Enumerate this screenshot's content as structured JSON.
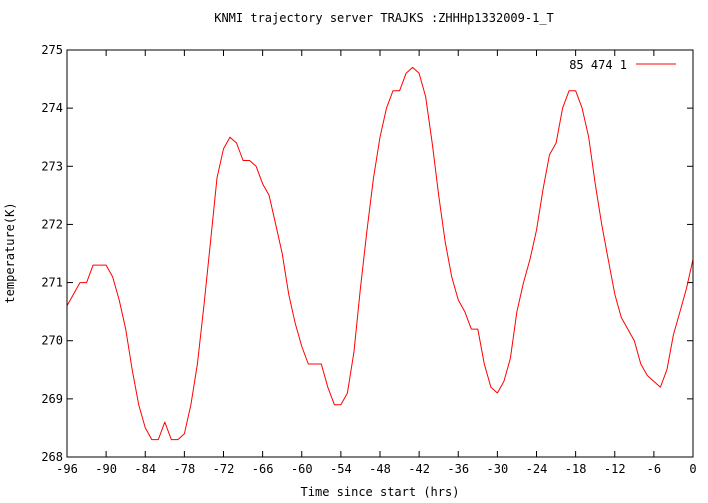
{
  "chart_data": {
    "type": "line",
    "title": "KNMI trajectory server TRAJKS :ZHHHp1332009-1_T",
    "xlabel": "Time since start (hrs)",
    "ylabel": "temperature(K)",
    "xlim": [
      -96,
      0
    ],
    "ylim": [
      268,
      275
    ],
    "xticks": [
      -96,
      -90,
      -84,
      -78,
      -72,
      -66,
      -60,
      -54,
      -48,
      -42,
      -36,
      -30,
      -24,
      -18,
      -12,
      -6,
      0
    ],
    "yticks": [
      268,
      269,
      270,
      271,
      272,
      273,
      274,
      275
    ],
    "grid": false,
    "legend_position": "top-right",
    "series": [
      {
        "name": "85 474 1",
        "color": "#ff0000",
        "x": [
          -96,
          -95,
          -94,
          -93,
          -92,
          -91,
          -90,
          -89,
          -88,
          -87,
          -86,
          -85,
          -84,
          -83,
          -82,
          -81,
          -80,
          -79,
          -78,
          -77,
          -76,
          -75,
          -74,
          -73,
          -72,
          -71,
          -70,
          -69,
          -68,
          -67,
          -66,
          -65,
          -64,
          -63,
          -62,
          -61,
          -60,
          -59,
          -58,
          -57,
          -56,
          -55,
          -54,
          -53,
          -52,
          -51,
          -50,
          -49,
          -48,
          -47,
          -46,
          -45,
          -44,
          -43,
          -42,
          -41,
          -40,
          -39,
          -38,
          -37,
          -36,
          -35,
          -34,
          -33,
          -32,
          -31,
          -30,
          -29,
          -28,
          -27,
          -26,
          -25,
          -24,
          -23,
          -22,
          -21,
          -20,
          -19,
          -18,
          -17,
          -16,
          -15,
          -14,
          -13,
          -12,
          -11,
          -10,
          -9,
          -8,
          -7,
          -6,
          -5,
          -4,
          -3,
          -2,
          -1,
          0
        ],
        "y": [
          270.6,
          270.8,
          271.0,
          271.0,
          271.3,
          271.3,
          271.3,
          271.1,
          270.7,
          270.2,
          269.5,
          268.9,
          268.5,
          268.3,
          268.3,
          268.6,
          268.3,
          268.3,
          268.4,
          268.9,
          269.6,
          270.6,
          271.7,
          272.8,
          273.3,
          273.5,
          273.4,
          273.1,
          273.1,
          273.0,
          272.7,
          272.5,
          272.0,
          271.5,
          270.8,
          270.3,
          269.9,
          269.6,
          269.6,
          269.6,
          269.2,
          268.9,
          268.9,
          269.1,
          269.8,
          270.9,
          271.9,
          272.8,
          273.5,
          274.0,
          274.3,
          274.3,
          274.6,
          274.7,
          274.6,
          274.2,
          273.4,
          272.5,
          271.7,
          271.1,
          270.7,
          270.5,
          270.2,
          270.2,
          269.6,
          269.2,
          269.1,
          269.3,
          269.7,
          270.5,
          271.0,
          271.4,
          271.9,
          272.6,
          273.2,
          273.4,
          274.0,
          274.3,
          274.3,
          274.0,
          273.5,
          272.7,
          272.0,
          271.4,
          270.8,
          270.4,
          270.2,
          270.0,
          269.6,
          269.4,
          269.3,
          269.2,
          269.5,
          270.1,
          270.5,
          270.9,
          271.4
        ]
      }
    ]
  }
}
